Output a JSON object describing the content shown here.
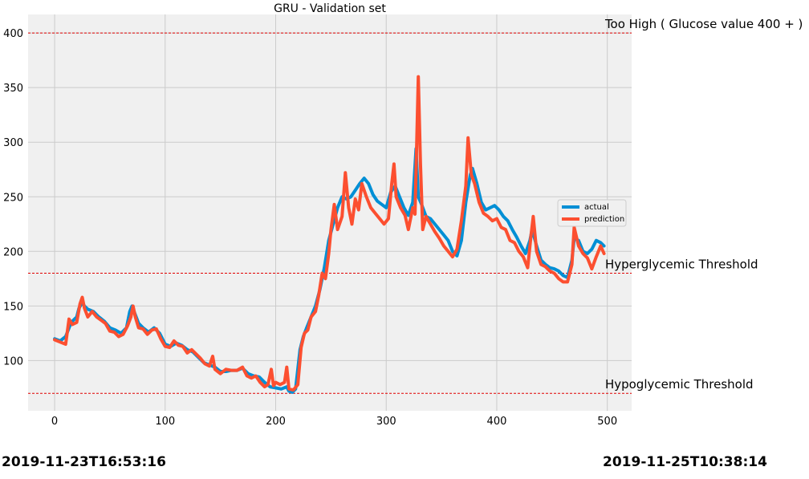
{
  "chart_data": {
    "type": "line",
    "title": "GRU - Validation set",
    "xlim": [
      -24,
      522
    ],
    "ylim": [
      54,
      417
    ],
    "x_ticks": [
      0,
      100,
      200,
      300,
      400,
      500
    ],
    "y_ticks": [
      100,
      150,
      200,
      250,
      300,
      350,
      400
    ],
    "grid": true,
    "legend": "right",
    "thresholds": [
      {
        "value": 400,
        "label": "Too High ( Glucose value 400 + )"
      },
      {
        "value": 180,
        "label": "Hyperglycemic Threshold"
      },
      {
        "value": 70,
        "label": "Hypoglycemic Threshold"
      }
    ],
    "series": [
      {
        "name": "actual",
        "color": "#008fd5",
        "points": [
          [
            0,
            120
          ],
          [
            5,
            118
          ],
          [
            10,
            122
          ],
          [
            15,
            135
          ],
          [
            20,
            140
          ],
          [
            22,
            148
          ],
          [
            25,
            153
          ],
          [
            27,
            150
          ],
          [
            30,
            147
          ],
          [
            35,
            145
          ],
          [
            40,
            140
          ],
          [
            45,
            136
          ],
          [
            50,
            130
          ],
          [
            55,
            128
          ],
          [
            60,
            125
          ],
          [
            65,
            130
          ],
          [
            68,
            145
          ],
          [
            70,
            150
          ],
          [
            73,
            142
          ],
          [
            76,
            134
          ],
          [
            80,
            130
          ],
          [
            85,
            126
          ],
          [
            90,
            130
          ],
          [
            95,
            125
          ],
          [
            100,
            115
          ],
          [
            105,
            113
          ],
          [
            110,
            116
          ],
          [
            115,
            114
          ],
          [
            120,
            110
          ],
          [
            125,
            108
          ],
          [
            130,
            103
          ],
          [
            135,
            98
          ],
          [
            140,
            96
          ],
          [
            145,
            94
          ],
          [
            150,
            90
          ],
          [
            155,
            90
          ],
          [
            160,
            91
          ],
          [
            165,
            91
          ],
          [
            170,
            93
          ],
          [
            175,
            88
          ],
          [
            180,
            86
          ],
          [
            185,
            85
          ],
          [
            190,
            80
          ],
          [
            195,
            76
          ],
          [
            200,
            75
          ],
          [
            205,
            74
          ],
          [
            210,
            76
          ],
          [
            212,
            72
          ],
          [
            215,
            71
          ],
          [
            218,
            74
          ],
          [
            222,
            110
          ],
          [
            225,
            122
          ],
          [
            228,
            130
          ],
          [
            232,
            140
          ],
          [
            236,
            150
          ],
          [
            240,
            165
          ],
          [
            244,
            185
          ],
          [
            248,
            210
          ],
          [
            252,
            225
          ],
          [
            256,
            240
          ],
          [
            260,
            250
          ],
          [
            264,
            248
          ],
          [
            268,
            250
          ],
          [
            272,
            256
          ],
          [
            276,
            262
          ],
          [
            280,
            267
          ],
          [
            284,
            262
          ],
          [
            288,
            252
          ],
          [
            292,
            246
          ],
          [
            296,
            243
          ],
          [
            300,
            240
          ],
          [
            304,
            254
          ],
          [
            308,
            260
          ],
          [
            312,
            250
          ],
          [
            316,
            240
          ],
          [
            320,
            233
          ],
          [
            324,
            245
          ],
          [
            327,
            294
          ],
          [
            329,
            250
          ],
          [
            332,
            243
          ],
          [
            336,
            232
          ],
          [
            340,
            230
          ],
          [
            344,
            225
          ],
          [
            348,
            220
          ],
          [
            352,
            215
          ],
          [
            356,
            210
          ],
          [
            360,
            200
          ],
          [
            364,
            196
          ],
          [
            368,
            210
          ],
          [
            372,
            245
          ],
          [
            376,
            270
          ],
          [
            378,
            276
          ],
          [
            382,
            262
          ],
          [
            386,
            245
          ],
          [
            390,
            238
          ],
          [
            394,
            240
          ],
          [
            398,
            242
          ],
          [
            402,
            238
          ],
          [
            406,
            232
          ],
          [
            410,
            228
          ],
          [
            414,
            220
          ],
          [
            418,
            213
          ],
          [
            422,
            205
          ],
          [
            426,
            198
          ],
          [
            430,
            210
          ],
          [
            432,
            220
          ],
          [
            436,
            205
          ],
          [
            440,
            192
          ],
          [
            444,
            188
          ],
          [
            448,
            185
          ],
          [
            452,
            184
          ],
          [
            456,
            182
          ],
          [
            460,
            178
          ],
          [
            464,
            176
          ],
          [
            468,
            192
          ],
          [
            470,
            212
          ],
          [
            474,
            210
          ],
          [
            478,
            200
          ],
          [
            482,
            198
          ],
          [
            486,
            202
          ],
          [
            490,
            210
          ],
          [
            494,
            208
          ],
          [
            497,
            205
          ]
        ]
      },
      {
        "name": "prediction",
        "color": "#fc4f30",
        "points": [
          [
            0,
            119
          ],
          [
            5,
            117
          ],
          [
            10,
            115
          ],
          [
            13,
            138
          ],
          [
            16,
            133
          ],
          [
            20,
            135
          ],
          [
            23,
            152
          ],
          [
            25,
            158
          ],
          [
            27,
            148
          ],
          [
            30,
            140
          ],
          [
            34,
            145
          ],
          [
            38,
            140
          ],
          [
            42,
            137
          ],
          [
            46,
            134
          ],
          [
            50,
            127
          ],
          [
            54,
            126
          ],
          [
            58,
            122
          ],
          [
            62,
            124
          ],
          [
            66,
            132
          ],
          [
            69,
            140
          ],
          [
            71,
            150
          ],
          [
            73,
            140
          ],
          [
            76,
            130
          ],
          [
            80,
            129
          ],
          [
            84,
            124
          ],
          [
            88,
            128
          ],
          [
            92,
            129
          ],
          [
            96,
            120
          ],
          [
            100,
            113
          ],
          [
            104,
            112
          ],
          [
            108,
            118
          ],
          [
            112,
            114
          ],
          [
            116,
            113
          ],
          [
            120,
            107
          ],
          [
            124,
            110
          ],
          [
            128,
            106
          ],
          [
            132,
            102
          ],
          [
            136,
            97
          ],
          [
            140,
            95
          ],
          [
            143,
            104
          ],
          [
            145,
            92
          ],
          [
            150,
            88
          ],
          [
            155,
            92
          ],
          [
            160,
            91
          ],
          [
            165,
            91
          ],
          [
            170,
            94
          ],
          [
            174,
            86
          ],
          [
            178,
            84
          ],
          [
            182,
            86
          ],
          [
            186,
            80
          ],
          [
            190,
            76
          ],
          [
            193,
            78
          ],
          [
            196,
            92
          ],
          [
            198,
            77
          ],
          [
            200,
            80
          ],
          [
            204,
            78
          ],
          [
            208,
            80
          ],
          [
            210,
            94
          ],
          [
            212,
            74
          ],
          [
            216,
            73
          ],
          [
            220,
            78
          ],
          [
            223,
            112
          ],
          [
            226,
            125
          ],
          [
            229,
            128
          ],
          [
            232,
            140
          ],
          [
            236,
            145
          ],
          [
            239,
            160
          ],
          [
            242,
            180
          ],
          [
            245,
            175
          ],
          [
            248,
            198
          ],
          [
            250,
            220
          ],
          [
            253,
            243
          ],
          [
            256,
            220
          ],
          [
            260,
            232
          ],
          [
            263,
            272
          ],
          [
            266,
            240
          ],
          [
            269,
            225
          ],
          [
            272,
            248
          ],
          [
            275,
            238
          ],
          [
            278,
            262
          ],
          [
            282,
            250
          ],
          [
            286,
            240
          ],
          [
            290,
            235
          ],
          [
            294,
            230
          ],
          [
            298,
            225
          ],
          [
            302,
            230
          ],
          [
            305,
            262
          ],
          [
            307,
            280
          ],
          [
            309,
            250
          ],
          [
            313,
            240
          ],
          [
            317,
            233
          ],
          [
            320,
            220
          ],
          [
            324,
            240
          ],
          [
            326,
            234
          ],
          [
            329,
            360
          ],
          [
            331,
            280
          ],
          [
            333,
            220
          ],
          [
            336,
            232
          ],
          [
            340,
            225
          ],
          [
            344,
            218
          ],
          [
            348,
            212
          ],
          [
            352,
            205
          ],
          [
            356,
            200
          ],
          [
            360,
            195
          ],
          [
            364,
            202
          ],
          [
            368,
            228
          ],
          [
            372,
            260
          ],
          [
            374,
            304
          ],
          [
            377,
            270
          ],
          [
            380,
            262
          ],
          [
            384,
            245
          ],
          [
            388,
            235
          ],
          [
            392,
            232
          ],
          [
            396,
            228
          ],
          [
            400,
            230
          ],
          [
            404,
            222
          ],
          [
            408,
            220
          ],
          [
            412,
            210
          ],
          [
            416,
            208
          ],
          [
            420,
            200
          ],
          [
            424,
            195
          ],
          [
            428,
            185
          ],
          [
            431,
            215
          ],
          [
            433,
            232
          ],
          [
            436,
            200
          ],
          [
            440,
            188
          ],
          [
            444,
            186
          ],
          [
            448,
            182
          ],
          [
            452,
            180
          ],
          [
            456,
            175
          ],
          [
            460,
            172
          ],
          [
            464,
            172
          ],
          [
            468,
            188
          ],
          [
            470,
            222
          ],
          [
            474,
            205
          ],
          [
            478,
            198
          ],
          [
            482,
            194
          ],
          [
            486,
            184
          ],
          [
            490,
            195
          ],
          [
            494,
            205
          ],
          [
            497,
            198
          ]
        ]
      }
    ],
    "annotations": {
      "start_time": "2019-11-23T16:53:16",
      "end_time": "2019-11-25T10:38:14"
    }
  }
}
